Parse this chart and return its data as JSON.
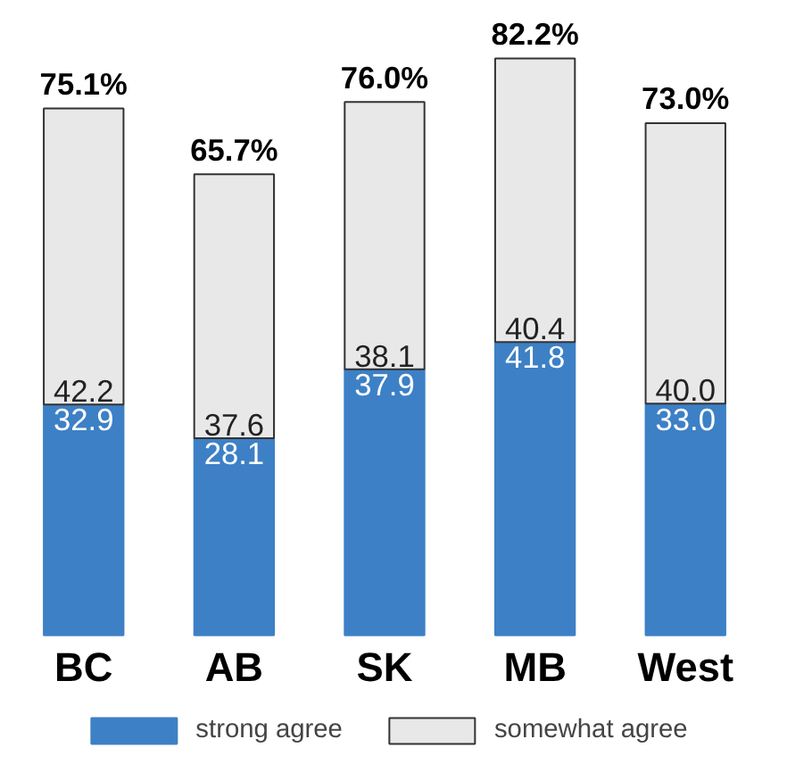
{
  "chart_data": {
    "type": "bar",
    "stacked": true,
    "categories": [
      "BC",
      "AB",
      "SK",
      "MB",
      "West"
    ],
    "series": [
      {
        "name": "strong agree",
        "color": "#3d80c6",
        "values": [
          32.9,
          28.1,
          37.9,
          41.8,
          33.0
        ],
        "value_labels": [
          "32.9",
          "28.1",
          "37.9",
          "41.8",
          "33.0"
        ]
      },
      {
        "name": "somewhat agree",
        "color": "#e8e8e8",
        "values": [
          42.2,
          37.6,
          38.1,
          40.4,
          40.0
        ],
        "value_labels": [
          "42.2",
          "37.6",
          "38.1",
          "40.4",
          "40.0"
        ]
      }
    ],
    "totals": [
      "75.1%",
      "65.7%",
      "76.0%",
      "82.2%",
      "73.0%"
    ],
    "legend": "bottom"
  }
}
